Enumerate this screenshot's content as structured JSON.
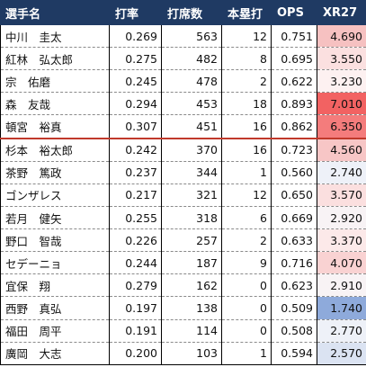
{
  "headers": [
    "選手名",
    "打率",
    "打席数",
    "本塁打",
    "OPS",
    "XR27"
  ],
  "rows": [
    {
      "name": "中川　圭太",
      "avg": "0.269",
      "pa": "563",
      "hr": "12",
      "ops": "0.751",
      "xr27": "4.690",
      "xr_color": "#f6c1c1"
    },
    {
      "name": "紅林　弘太郎",
      "avg": "0.275",
      "pa": "482",
      "hr": "8",
      "ops": "0.695",
      "xr27": "3.550",
      "xr_color": "#fbe0e0"
    },
    {
      "name": "宗　佑磨",
      "avg": "0.245",
      "pa": "478",
      "hr": "2",
      "ops": "0.622",
      "xr27": "3.230",
      "xr_color": "#fdf1f1"
    },
    {
      "name": "森　友哉",
      "avg": "0.294",
      "pa": "453",
      "hr": "18",
      "ops": "0.893",
      "xr27": "7.010",
      "xr_color": "#f26262"
    },
    {
      "name": "頓宮　裕真",
      "avg": "0.307",
      "pa": "451",
      "hr": "16",
      "ops": "0.862",
      "xr27": "6.350",
      "xr_color": "#f47c7c"
    },
    {
      "name": "杉本　裕太郎",
      "avg": "0.242",
      "pa": "370",
      "hr": "16",
      "ops": "0.723",
      "xr27": "4.560",
      "xr_color": "#f7c6c6"
    },
    {
      "name": "茶野　篤政",
      "avg": "0.237",
      "pa": "344",
      "hr": "1",
      "ops": "0.560",
      "xr27": "2.740",
      "xr_color": "#eef1f8"
    },
    {
      "name": "ゴンザレス",
      "avg": "0.217",
      "pa": "321",
      "hr": "12",
      "ops": "0.650",
      "xr27": "3.570",
      "xr_color": "#fbdfdf"
    },
    {
      "name": "若月　健矢",
      "avg": "0.255",
      "pa": "318",
      "hr": "6",
      "ops": "0.669",
      "xr27": "2.920",
      "xr_color": "#f8f3f5"
    },
    {
      "name": "野口　智哉",
      "avg": "0.226",
      "pa": "257",
      "hr": "2",
      "ops": "0.633",
      "xr27": "3.370",
      "xr_color": "#fce9e9"
    },
    {
      "name": "セデーニョ",
      "avg": "0.244",
      "pa": "187",
      "hr": "9",
      "ops": "0.716",
      "xr27": "4.070",
      "xr_color": "#f9d2d2"
    },
    {
      "name": "宜保　翔",
      "avg": "0.279",
      "pa": "162",
      "hr": "0",
      "ops": "0.623",
      "xr27": "2.910",
      "xr_color": "#f8f3f5"
    },
    {
      "name": "西野　真弘",
      "avg": "0.197",
      "pa": "138",
      "hr": "0",
      "ops": "0.509",
      "xr27": "1.740",
      "xr_color": "#8eaadb"
    },
    {
      "name": "福田　周平",
      "avg": "0.191",
      "pa": "114",
      "hr": "0",
      "ops": "0.508",
      "xr27": "2.770",
      "xr_color": "#eef1f8"
    },
    {
      "name": "廣岡　大志",
      "avg": "0.200",
      "pa": "103",
      "hr": "1",
      "ops": "0.594",
      "xr27": "2.570",
      "xr_color": "#dbe3f2"
    }
  ]
}
